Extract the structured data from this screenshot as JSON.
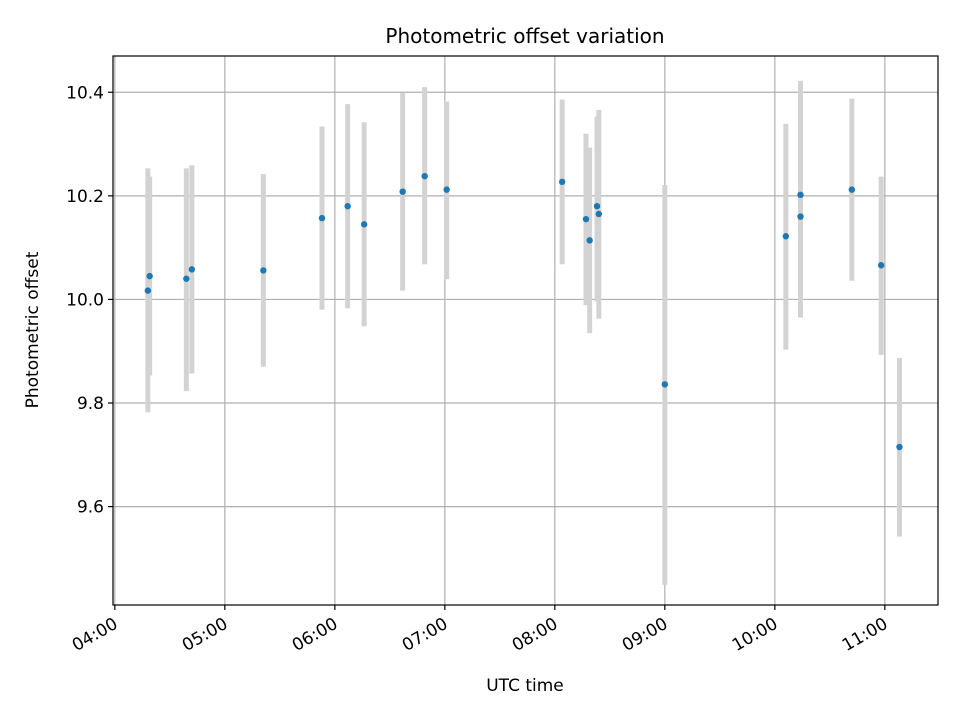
{
  "chart_data": {
    "type": "scatter",
    "title": "Photometric offset variation",
    "xlabel": "UTC time",
    "ylabel": "Photometric offset",
    "x_unit": "hours (UTC)",
    "xlim": [
      "03:59",
      "11:29"
    ],
    "ylim": [
      9.41,
      10.47
    ],
    "grid": true,
    "x_ticks": [
      "04:00",
      "05:00",
      "06:00",
      "07:00",
      "08:00",
      "09:00",
      "10:00",
      "11:00"
    ],
    "y_ticks": [
      "9.6",
      "9.8",
      "10.0",
      "10.2",
      "10.4"
    ],
    "colors": {
      "point": "#1f77b4",
      "errorbar": "#d3d3d3",
      "grid": "#b0b0b0"
    },
    "points": [
      {
        "x": "04:18",
        "y": 10.017,
        "err_low": 9.782,
        "err_high": 10.253
      },
      {
        "x": "04:19",
        "y": 10.045,
        "err_low": 9.853,
        "err_high": 10.237
      },
      {
        "x": "04:39",
        "y": 10.04,
        "err_low": 9.823,
        "err_high": 10.253
      },
      {
        "x": "04:42",
        "y": 10.058,
        "err_low": 9.857,
        "err_high": 10.259
      },
      {
        "x": "05:21",
        "y": 10.056,
        "err_low": 9.87,
        "err_high": 10.242
      },
      {
        "x": "05:53",
        "y": 10.157,
        "err_low": 9.98,
        "err_high": 10.334
      },
      {
        "x": "06:07",
        "y": 10.18,
        "err_low": 9.983,
        "err_high": 10.377
      },
      {
        "x": "06:16",
        "y": 10.145,
        "err_low": 9.948,
        "err_high": 10.342
      },
      {
        "x": "06:37",
        "y": 10.208,
        "err_low": 10.017,
        "err_high": 10.399
      },
      {
        "x": "06:49",
        "y": 10.238,
        "err_low": 10.068,
        "err_high": 10.41
      },
      {
        "x": "07:01",
        "y": 10.212,
        "err_low": 10.039,
        "err_high": 10.382
      },
      {
        "x": "08:04",
        "y": 10.227,
        "err_low": 10.068,
        "err_high": 10.386
      },
      {
        "x": "08:17",
        "y": 10.155,
        "err_low": 9.989,
        "err_high": 10.32
      },
      {
        "x": "08:19",
        "y": 10.114,
        "err_low": 9.935,
        "err_high": 10.293
      },
      {
        "x": "08:23",
        "y": 10.18,
        "err_low": 9.996,
        "err_high": 10.353
      },
      {
        "x": "08:24",
        "y": 10.165,
        "err_low": 9.963,
        "err_high": 10.366
      },
      {
        "x": "09:00",
        "y": 9.836,
        "err_low": 9.449,
        "err_high": 10.221
      },
      {
        "x": "10:06",
        "y": 10.122,
        "err_low": 9.903,
        "err_high": 10.339
      },
      {
        "x": "10:14",
        "y": 10.202,
        "err_low": 9.981,
        "err_high": 10.422
      },
      {
        "x": "10:14",
        "y": 10.16,
        "err_low": 9.965,
        "err_high": 10.353
      },
      {
        "x": "10:42",
        "y": 10.212,
        "err_low": 10.036,
        "err_high": 10.388
      },
      {
        "x": "10:58",
        "y": 10.066,
        "err_low": 9.893,
        "err_high": 10.237
      },
      {
        "x": "11:08",
        "y": 9.715,
        "err_low": 9.542,
        "err_high": 9.887
      }
    ]
  }
}
